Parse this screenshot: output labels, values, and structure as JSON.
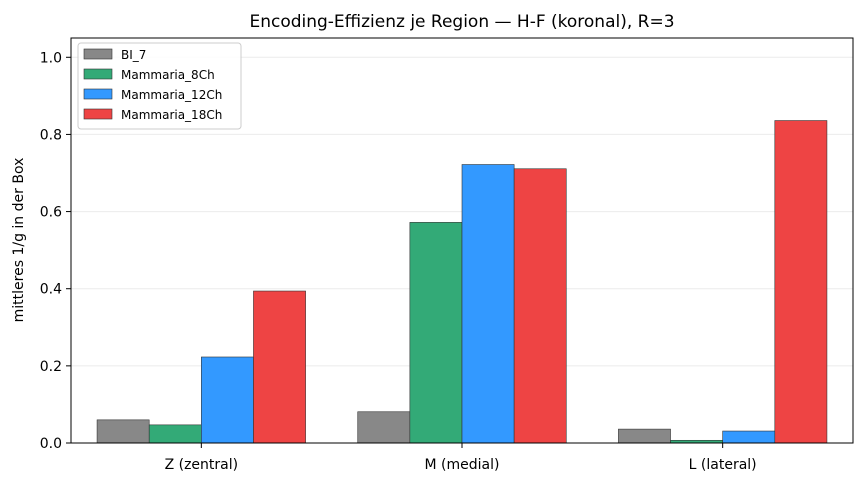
{
  "chart_data": {
    "type": "bar",
    "title": "Encoding-Effizienz je Region — H-F (koronal), R=3",
    "xlabel": "",
    "ylabel": "mittleres 1/g in der Box",
    "categories": [
      "Z (zentral)",
      "M (medial)",
      "L (lateral)"
    ],
    "series": [
      {
        "name": "BI_7",
        "color": "#888888",
        "values": [
          0.06,
          0.081,
          0.036
        ]
      },
      {
        "name": "Mammaria_8Ch",
        "color": "#33aa77",
        "values": [
          0.047,
          0.572,
          0.007
        ]
      },
      {
        "name": "Mammaria_12Ch",
        "color": "#3399ff",
        "values": [
          0.223,
          0.722,
          0.031
        ]
      },
      {
        "name": "Mammaria_18Ch",
        "color": "#ee4444",
        "values": [
          0.394,
          0.711,
          0.836
        ]
      }
    ],
    "ylim": [
      0,
      1.05
    ],
    "yticks": [
      "0.0",
      "0.2",
      "0.4",
      "0.6",
      "0.8",
      "1.0"
    ],
    "grid": "y",
    "legend": "top-left"
  }
}
